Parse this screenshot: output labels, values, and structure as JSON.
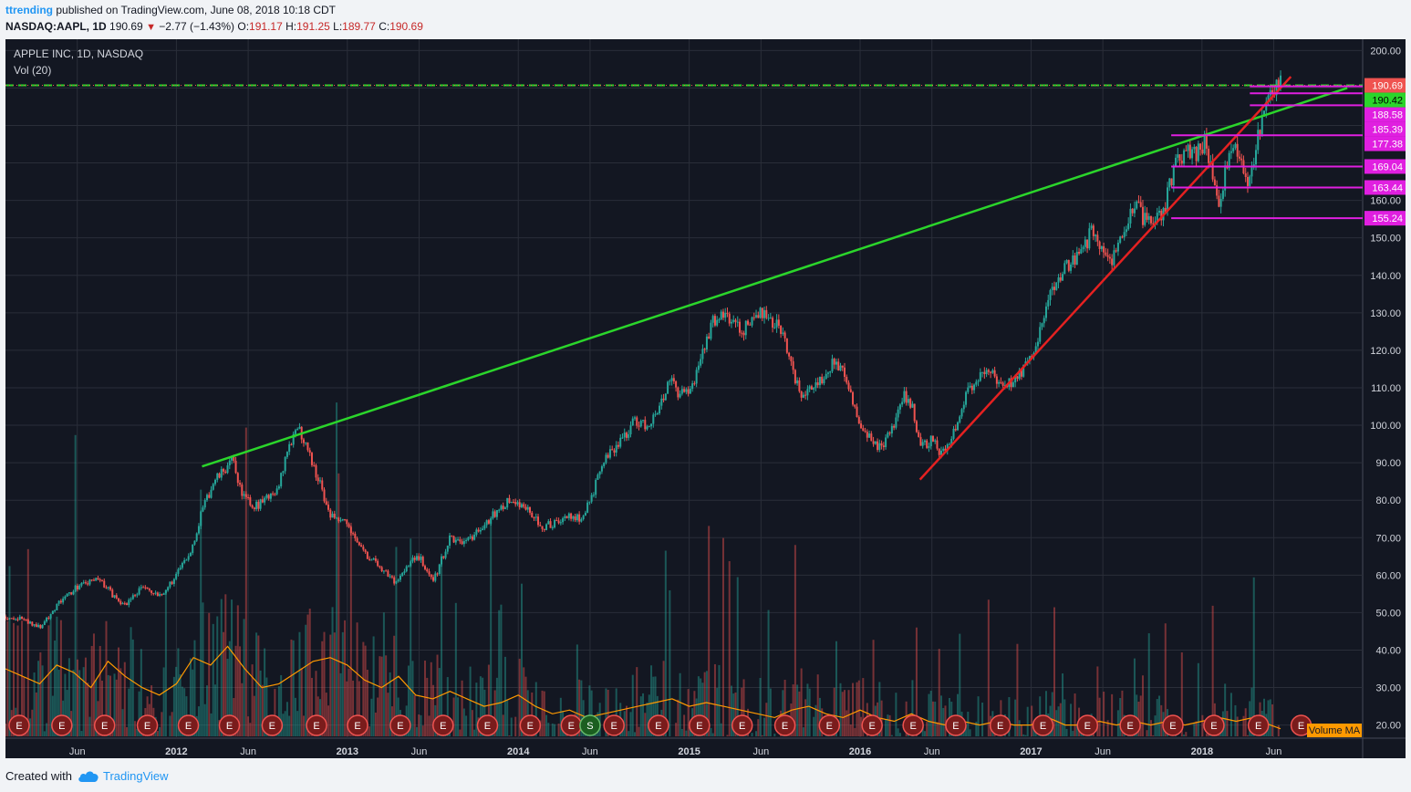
{
  "header": {
    "user": "ttrending",
    "published": "published on TradingView.com, June 08, 2018 10:18 CDT",
    "symbol": "NASDAQ:AAPL, 1D",
    "last": "190.69",
    "change_icon": "down-triangle-icon",
    "change": "−2.77 (−1.43%)",
    "o_label": "O:",
    "o": "191.17",
    "h_label": "H:",
    "h": "191.25",
    "l_label": "L:",
    "l": "189.77",
    "c_label": "C:",
    "c": "190.69"
  },
  "legend": {
    "title": "APPLE INC, 1D, NASDAQ",
    "vol": "Vol (20)"
  },
  "footer": {
    "created": "Created with",
    "brand": "TradingView",
    "brand_icon": "cloud-icon"
  },
  "colors": {
    "background": "#131722",
    "up": "#26a69a",
    "down": "#ef5350",
    "trend_green": "#2bd52b",
    "trend_red": "#e52121",
    "level": "#e01fe0",
    "volume_ma": "#ff9900",
    "grid": "#2a2e39"
  },
  "chart_data": {
    "type": "candlestick",
    "title": "APPLE INC, 1D, NASDAQ",
    "ylim": [
      16.5,
      203
    ],
    "y_ticks": [
      "200.00",
      "190.00",
      "180.00",
      "170.00",
      "160.00",
      "150.00",
      "140.00",
      "130.00",
      "120.00",
      "110.00",
      "100.00",
      "90.00",
      "80.00",
      "70.00",
      "60.00",
      "50.00",
      "40.00",
      "30.00",
      "20.00"
    ],
    "x_ticks": [
      {
        "label": "Jun",
        "t": 2011.42
      },
      {
        "label": "2012",
        "t": 2012.0
      },
      {
        "label": "Jun",
        "t": 2012.42
      },
      {
        "label": "2013",
        "t": 2013.0
      },
      {
        "label": "Jun",
        "t": 2013.42
      },
      {
        "label": "2014",
        "t": 2014.0
      },
      {
        "label": "Jun",
        "t": 2014.42
      },
      {
        "label": "2015",
        "t": 2015.0
      },
      {
        "label": "Jun",
        "t": 2015.42
      },
      {
        "label": "2016",
        "t": 2016.0
      },
      {
        "label": "Jun",
        "t": 2016.42
      },
      {
        "label": "2017",
        "t": 2017.0
      },
      {
        "label": "Jun",
        "t": 2017.42
      },
      {
        "label": "2018",
        "t": 2018.0
      },
      {
        "label": "Jun",
        "t": 2018.42
      }
    ],
    "price_path": [
      [
        2011.0,
        49
      ],
      [
        2011.12,
        48
      ],
      [
        2011.2,
        46
      ],
      [
        2011.3,
        52
      ],
      [
        2011.42,
        57
      ],
      [
        2011.55,
        59
      ],
      [
        2011.62,
        55
      ],
      [
        2011.7,
        52
      ],
      [
        2011.8,
        57
      ],
      [
        2011.9,
        54
      ],
      [
        2012.0,
        60
      ],
      [
        2012.08,
        66
      ],
      [
        2012.15,
        77
      ],
      [
        2012.22,
        85
      ],
      [
        2012.3,
        89
      ],
      [
        2012.33,
        91
      ],
      [
        2012.38,
        82
      ],
      [
        2012.45,
        78
      ],
      [
        2012.52,
        80
      ],
      [
        2012.6,
        84
      ],
      [
        2012.67,
        96
      ],
      [
        2012.72,
        99
      ],
      [
        2012.78,
        92
      ],
      [
        2012.85,
        83
      ],
      [
        2012.9,
        76
      ],
      [
        2012.98,
        75
      ],
      [
        2013.05,
        70
      ],
      [
        2013.12,
        65
      ],
      [
        2013.2,
        62
      ],
      [
        2013.28,
        58
      ],
      [
        2013.35,
        63
      ],
      [
        2013.42,
        65
      ],
      [
        2013.5,
        58
      ],
      [
        2013.55,
        64
      ],
      [
        2013.6,
        70
      ],
      [
        2013.7,
        69
      ],
      [
        2013.78,
        72
      ],
      [
        2013.85,
        76
      ],
      [
        2013.95,
        80
      ],
      [
        2014.05,
        78
      ],
      [
        2014.1,
        75
      ],
      [
        2014.15,
        73
      ],
      [
        2014.22,
        74
      ],
      [
        2014.3,
        76
      ],
      [
        2014.36,
        75
      ],
      [
        2014.42,
        80
      ],
      [
        2014.5,
        90
      ],
      [
        2014.6,
        96
      ],
      [
        2014.68,
        101
      ],
      [
        2014.75,
        100
      ],
      [
        2014.82,
        104
      ],
      [
        2014.88,
        112
      ],
      [
        2014.95,
        108
      ],
      [
        2015.02,
        110
      ],
      [
        2015.08,
        120
      ],
      [
        2015.14,
        128
      ],
      [
        2015.2,
        130
      ],
      [
        2015.3,
        125
      ],
      [
        2015.38,
        128
      ],
      [
        2015.44,
        131
      ],
      [
        2015.5,
        127
      ],
      [
        2015.55,
        125
      ],
      [
        2015.6,
        116
      ],
      [
        2015.65,
        108
      ],
      [
        2015.72,
        111
      ],
      [
        2015.8,
        113
      ],
      [
        2015.85,
        118
      ],
      [
        2015.92,
        112
      ],
      [
        2016.0,
        100
      ],
      [
        2016.06,
        96
      ],
      [
        2016.12,
        94
      ],
      [
        2016.18,
        98
      ],
      [
        2016.25,
        108
      ],
      [
        2016.3,
        106
      ],
      [
        2016.35,
        94
      ],
      [
        2016.42,
        96
      ],
      [
        2016.48,
        92
      ],
      [
        2016.55,
        99
      ],
      [
        2016.62,
        108
      ],
      [
        2016.7,
        113
      ],
      [
        2016.76,
        116
      ],
      [
        2016.8,
        110
      ],
      [
        2016.88,
        111
      ],
      [
        2016.95,
        114
      ],
      [
        2017.02,
        120
      ],
      [
        2017.08,
        130
      ],
      [
        2017.15,
        139
      ],
      [
        2017.22,
        143
      ],
      [
        2017.3,
        146
      ],
      [
        2017.36,
        153
      ],
      [
        2017.42,
        145
      ],
      [
        2017.48,
        144
      ],
      [
        2017.55,
        151
      ],
      [
        2017.6,
        160
      ],
      [
        2017.66,
        155
      ],
      [
        2017.72,
        153
      ],
      [
        2017.78,
        158
      ],
      [
        2017.84,
        170
      ],
      [
        2017.9,
        173
      ],
      [
        2017.96,
        172
      ],
      [
        2018.02,
        176
      ],
      [
        2018.06,
        168
      ],
      [
        2018.1,
        160
      ],
      [
        2018.14,
        168
      ],
      [
        2018.2,
        175
      ],
      [
        2018.24,
        167
      ],
      [
        2018.28,
        164
      ],
      [
        2018.33,
        177
      ],
      [
        2018.38,
        187
      ],
      [
        2018.43,
        191
      ],
      [
        2018.46,
        190.69
      ]
    ],
    "volume_ma_path": [
      [
        2011.0,
        35
      ],
      [
        2011.1,
        33
      ],
      [
        2011.2,
        31
      ],
      [
        2011.3,
        36
      ],
      [
        2011.4,
        34
      ],
      [
        2011.5,
        30
      ],
      [
        2011.6,
        37
      ],
      [
        2011.7,
        33
      ],
      [
        2011.8,
        30
      ],
      [
        2011.9,
        28
      ],
      [
        2012.0,
        31
      ],
      [
        2012.1,
        38
      ],
      [
        2012.2,
        36
      ],
      [
        2012.3,
        41
      ],
      [
        2012.4,
        35
      ],
      [
        2012.5,
        30
      ],
      [
        2012.6,
        31
      ],
      [
        2012.7,
        34
      ],
      [
        2012.8,
        37
      ],
      [
        2012.9,
        38
      ],
      [
        2013.0,
        36
      ],
      [
        2013.1,
        32
      ],
      [
        2013.2,
        30
      ],
      [
        2013.3,
        33
      ],
      [
        2013.4,
        28
      ],
      [
        2013.5,
        27
      ],
      [
        2013.6,
        29
      ],
      [
        2013.7,
        27
      ],
      [
        2013.8,
        25
      ],
      [
        2013.9,
        26
      ],
      [
        2014.0,
        28
      ],
      [
        2014.1,
        25
      ],
      [
        2014.2,
        23
      ],
      [
        2014.3,
        24
      ],
      [
        2014.4,
        22
      ],
      [
        2014.5,
        23
      ],
      [
        2014.6,
        24
      ],
      [
        2014.7,
        25
      ],
      [
        2014.8,
        26
      ],
      [
        2014.9,
        27
      ],
      [
        2015.0,
        25
      ],
      [
        2015.1,
        26
      ],
      [
        2015.2,
        25
      ],
      [
        2015.3,
        24
      ],
      [
        2015.4,
        23
      ],
      [
        2015.5,
        22
      ],
      [
        2015.6,
        24
      ],
      [
        2015.7,
        25
      ],
      [
        2015.8,
        23
      ],
      [
        2015.9,
        22
      ],
      [
        2016.0,
        24
      ],
      [
        2016.1,
        22
      ],
      [
        2016.2,
        21
      ],
      [
        2016.3,
        23
      ],
      [
        2016.4,
        21
      ],
      [
        2016.5,
        20
      ],
      [
        2016.6,
        21
      ],
      [
        2016.7,
        20
      ],
      [
        2016.8,
        21
      ],
      [
        2016.9,
        20
      ],
      [
        2017.0,
        20
      ],
      [
        2017.1,
        22
      ],
      [
        2017.2,
        20
      ],
      [
        2017.3,
        20
      ],
      [
        2017.4,
        21
      ],
      [
        2017.5,
        20
      ],
      [
        2017.6,
        21
      ],
      [
        2017.7,
        20
      ],
      [
        2017.8,
        21
      ],
      [
        2017.9,
        20
      ],
      [
        2018.0,
        21
      ],
      [
        2018.1,
        22
      ],
      [
        2018.2,
        21
      ],
      [
        2018.3,
        22
      ],
      [
        2018.4,
        20
      ],
      [
        2018.46,
        19
      ]
    ],
    "trendlines": [
      {
        "name": "green-long-trendline",
        "color": "#2bd52b",
        "from": [
          2012.15,
          89
        ],
        "to": [
          2018.85,
          190
        ]
      },
      {
        "name": "red-support-trendline",
        "color": "#e52121",
        "from": [
          2016.35,
          85.5
        ],
        "to": [
          2018.52,
          193
        ]
      }
    ],
    "levels": [
      {
        "price": 190.42,
        "label": "190.42",
        "from": 2018.28,
        "to": 2018.62
      },
      {
        "price": 188.58,
        "label": "188.58",
        "from": 2018.28,
        "to": 2018.62
      },
      {
        "price": 185.39,
        "label": "185.39",
        "from": 2018.28,
        "to": 2018.62
      },
      {
        "price": 177.38,
        "label": "177.38",
        "from": 2017.82,
        "to": 2018.62
      },
      {
        "price": 169.04,
        "label": "169.04",
        "from": 2017.82,
        "to": 2018.62
      },
      {
        "price": 163.44,
        "label": "163.44",
        "from": 2017.82,
        "to": 2018.62
      },
      {
        "price": 155.24,
        "label": "155.24",
        "from": 2017.82,
        "to": 2018.62
      }
    ],
    "last_price": {
      "price": 190.69,
      "label": "190.69"
    },
    "earnings_markers": [
      {
        "label": "E",
        "t": 2011.08
      },
      {
        "label": "E",
        "t": 2011.33
      },
      {
        "label": "E",
        "t": 2011.58
      },
      {
        "label": "E",
        "t": 2011.83
      },
      {
        "label": "E",
        "t": 2012.07
      },
      {
        "label": "E",
        "t": 2012.31
      },
      {
        "label": "E",
        "t": 2012.56
      },
      {
        "label": "E",
        "t": 2012.82
      },
      {
        "label": "E",
        "t": 2013.06
      },
      {
        "label": "E",
        "t": 2013.31
      },
      {
        "label": "E",
        "t": 2013.56
      },
      {
        "label": "E",
        "t": 2013.82
      },
      {
        "label": "E",
        "t": 2014.07
      },
      {
        "label": "E",
        "t": 2014.31
      },
      {
        "label": "E",
        "t": 2014.56
      },
      {
        "label": "E",
        "t": 2014.82
      },
      {
        "label": "S",
        "t": 2014.42
      },
      {
        "label": "E",
        "t": 2015.06
      },
      {
        "label": "E",
        "t": 2015.31
      },
      {
        "label": "E",
        "t": 2015.56
      },
      {
        "label": "E",
        "t": 2015.82
      },
      {
        "label": "E",
        "t": 2016.07
      },
      {
        "label": "E",
        "t": 2016.31
      },
      {
        "label": "E",
        "t": 2016.56
      },
      {
        "label": "E",
        "t": 2016.82
      },
      {
        "label": "E",
        "t": 2017.07
      },
      {
        "label": "E",
        "t": 2017.33
      },
      {
        "label": "E",
        "t": 2017.58
      },
      {
        "label": "E",
        "t": 2017.83
      },
      {
        "label": "E",
        "t": 2018.07
      },
      {
        "label": "E",
        "t": 2018.33
      },
      {
        "label": "E",
        "t": 2018.58
      }
    ],
    "volume_ma_label": "Volume MA"
  }
}
